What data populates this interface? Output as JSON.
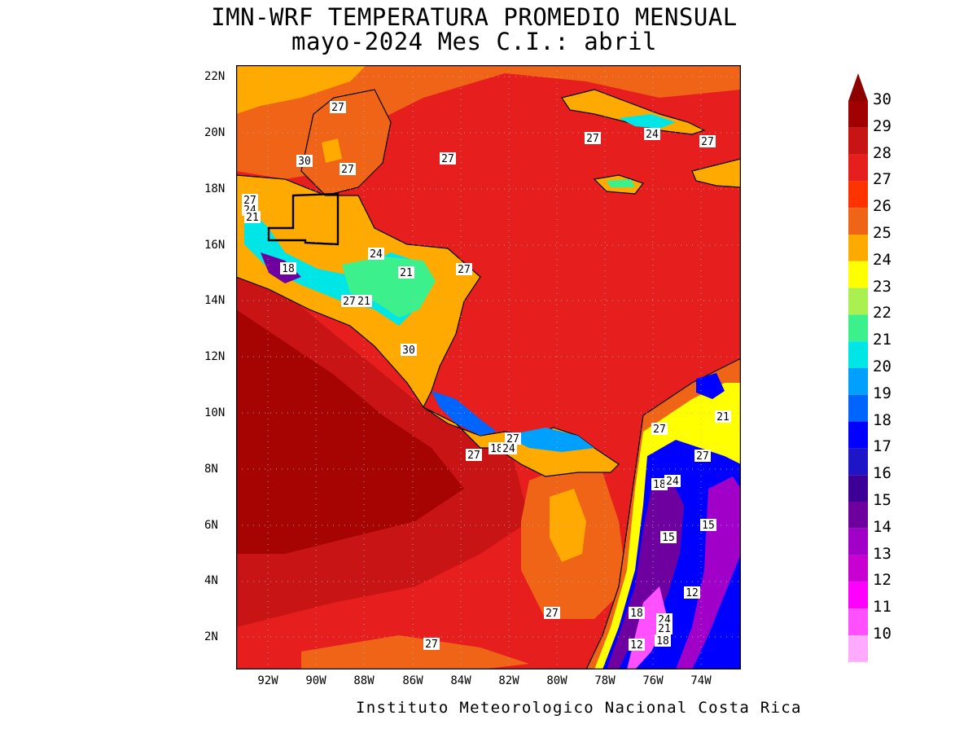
{
  "title": {
    "line1": "IMN-WRF  TEMPERATURA PROMEDIO MENSUAL",
    "line2": "mayo-2024 Mes C.I.: abril"
  },
  "footer": "Instituto Meteorologico Nacional Costa Rica",
  "axes": {
    "lat_labels": [
      "22N",
      "20N",
      "18N",
      "16N",
      "14N",
      "12N",
      "10N",
      "8N",
      "6N",
      "4N",
      "2N"
    ],
    "lon_labels": [
      "92W",
      "90W",
      "88W",
      "86W",
      "84W",
      "82W",
      "80W",
      "78W",
      "76W",
      "74W"
    ]
  },
  "legend": {
    "levels": [
      "30",
      "29",
      "28",
      "27",
      "26",
      "25",
      "24",
      "23",
      "22",
      "21",
      "20",
      "19",
      "18",
      "17",
      "16",
      "15",
      "14",
      "13",
      "12",
      "11",
      "10"
    ],
    "colors": [
      "#a00000",
      "#c81414",
      "#e61e1e",
      "#ff3300",
      "#f06418",
      "#ffaa00",
      "#ffff00",
      "#aaf050",
      "#3cf08c",
      "#00e6e6",
      "#00a0ff",
      "#0064ff",
      "#0000ff",
      "#1e14c8",
      "#3c0096",
      "#6e00a0",
      "#a000c8",
      "#c800d2",
      "#ff00ff",
      "#ff50ff",
      "#ffaaff"
    ],
    "top_arrow_color": "#8c0000"
  },
  "contour_labels": [
    {
      "text": "27"
    },
    {
      "text": "30"
    },
    {
      "text": "27"
    },
    {
      "text": "27"
    },
    {
      "text": "27"
    },
    {
      "text": "24"
    },
    {
      "text": "27"
    },
    {
      "text": "27"
    },
    {
      "text": "24"
    },
    {
      "text": "21"
    },
    {
      "text": "18"
    },
    {
      "text": "24"
    },
    {
      "text": "21"
    },
    {
      "text": "27"
    },
    {
      "text": "27"
    },
    {
      "text": "21"
    },
    {
      "text": "30"
    },
    {
      "text": "27"
    },
    {
      "text": "27"
    },
    {
      "text": "18"
    },
    {
      "text": "24"
    },
    {
      "text": "27"
    },
    {
      "text": "21"
    },
    {
      "text": "27"
    },
    {
      "text": "18"
    },
    {
      "text": "24"
    },
    {
      "text": "15"
    },
    {
      "text": "15"
    },
    {
      "text": "12"
    },
    {
      "text": "18"
    },
    {
      "text": "24"
    },
    {
      "text": "21"
    },
    {
      "text": "12"
    },
    {
      "text": "18"
    },
    {
      "text": "27"
    },
    {
      "text": "27"
    }
  ]
}
